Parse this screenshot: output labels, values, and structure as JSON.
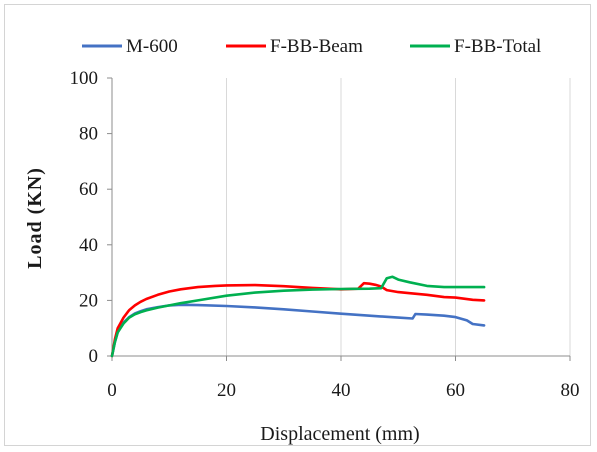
{
  "chart_data": {
    "type": "line",
    "xlabel": "Displacement (mm)",
    "ylabel": "Load  (KN)",
    "xlim": [
      0,
      80
    ],
    "ylim": [
      0,
      100
    ],
    "x_ticks": [
      "0",
      "20",
      "40",
      "60",
      "80"
    ],
    "y_ticks": [
      "0",
      "20",
      "40",
      "60",
      "80",
      "100"
    ],
    "grid": "vertical",
    "legend_position": "top",
    "series": [
      {
        "name": "M-600",
        "color": "#4472c4",
        "points": [
          [
            0,
            0
          ],
          [
            0.5,
            5
          ],
          [
            1,
            8.5
          ],
          [
            2,
            12
          ],
          [
            3,
            14
          ],
          [
            4,
            15.3
          ],
          [
            5,
            16.1
          ],
          [
            6,
            16.8
          ],
          [
            8,
            17.6
          ],
          [
            10,
            18.2
          ],
          [
            12,
            18.4
          ],
          [
            15,
            18.3
          ],
          [
            20,
            18
          ],
          [
            25,
            17.5
          ],
          [
            30,
            16.8
          ],
          [
            35,
            16
          ],
          [
            40,
            15.2
          ],
          [
            45,
            14.5
          ],
          [
            50,
            13.8
          ],
          [
            52.5,
            13.5
          ],
          [
            53,
            15.1
          ],
          [
            55,
            14.9
          ],
          [
            58,
            14.5
          ],
          [
            60,
            14
          ],
          [
            62,
            12.8
          ],
          [
            63,
            11.5
          ],
          [
            65,
            11
          ]
        ]
      },
      {
        "name": "F-BB-Beam",
        "color": "#ff0000",
        "points": [
          [
            0,
            0
          ],
          [
            0.5,
            6
          ],
          [
            1,
            10
          ],
          [
            2,
            13.8
          ],
          [
            3,
            16.5
          ],
          [
            4,
            18.2
          ],
          [
            5,
            19.5
          ],
          [
            6,
            20.5
          ],
          [
            8,
            22
          ],
          [
            10,
            23.2
          ],
          [
            12,
            24
          ],
          [
            15,
            24.8
          ],
          [
            18,
            25.2
          ],
          [
            20,
            25.4
          ],
          [
            25,
            25.5
          ],
          [
            30,
            25.1
          ],
          [
            35,
            24.5
          ],
          [
            40,
            24
          ],
          [
            43,
            24.2
          ],
          [
            44,
            26.2
          ],
          [
            45,
            26
          ],
          [
            46,
            25.6
          ],
          [
            47,
            25
          ],
          [
            48,
            23.7
          ],
          [
            50,
            23
          ],
          [
            52,
            22.6
          ],
          [
            55,
            22
          ],
          [
            58,
            21.2
          ],
          [
            60,
            21
          ],
          [
            63,
            20.2
          ],
          [
            65,
            20
          ]
        ]
      },
      {
        "name": "F-BB-Total",
        "color": "#00b050",
        "points": [
          [
            0,
            0
          ],
          [
            0.5,
            5
          ],
          [
            1,
            8.5
          ],
          [
            2,
            11.7
          ],
          [
            3,
            13.8
          ],
          [
            4,
            15
          ],
          [
            5,
            15.8
          ],
          [
            6,
            16.4
          ],
          [
            8,
            17.4
          ],
          [
            10,
            18.2
          ],
          [
            12,
            19
          ],
          [
            15,
            20
          ],
          [
            20,
            21.7
          ],
          [
            25,
            22.8
          ],
          [
            30,
            23.5
          ],
          [
            35,
            23.9
          ],
          [
            40,
            24.1
          ],
          [
            45,
            24.2
          ],
          [
            47,
            24.4
          ],
          [
            48,
            28
          ],
          [
            49,
            28.5
          ],
          [
            50,
            27.5
          ],
          [
            52,
            26.5
          ],
          [
            55,
            25.2
          ],
          [
            58,
            24.8
          ],
          [
            60,
            24.8
          ],
          [
            63,
            24.8
          ],
          [
            65,
            24.8
          ]
        ]
      }
    ]
  }
}
